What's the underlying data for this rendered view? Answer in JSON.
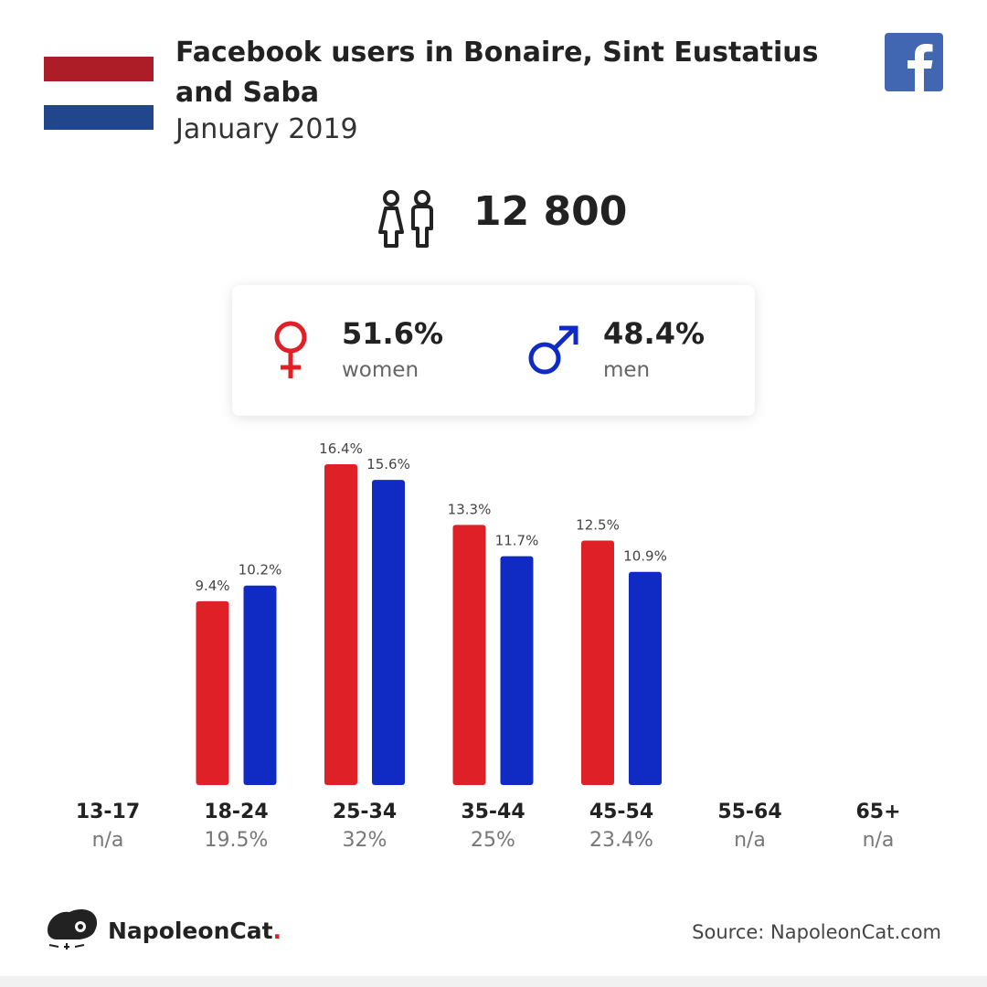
{
  "header": {
    "title": "Facebook users in Bonaire, Sint Eustatius and Saba",
    "subtitle": "January 2019"
  },
  "flag": {
    "colors": [
      "#ad1d28",
      "#ffffff",
      "#21468b"
    ]
  },
  "icons": {
    "flag": "netherlands-flag-icon",
    "social": "facebook-logo-icon",
    "users": "users-icon",
    "female": "female-symbol-icon",
    "male": "male-symbol-icon",
    "brand": "napoleoncat-logo-icon"
  },
  "totals": {
    "users": "12 800"
  },
  "gender": {
    "women": {
      "pct": "51.6%",
      "label": "women"
    },
    "men": {
      "pct": "48.4%",
      "label": "men"
    }
  },
  "colors": {
    "women": "#e02027",
    "men": "#0f2bc4",
    "facebook": "#4267b2"
  },
  "chart_data": {
    "type": "bar",
    "categories": [
      "13-17",
      "18-24",
      "25-34",
      "35-44",
      "45-54",
      "55-64",
      "65+"
    ],
    "category_totals": [
      "n/a",
      "19.5%",
      "32%",
      "25%",
      "23.4%",
      "n/a",
      "n/a"
    ],
    "series": [
      {
        "values": [
          null,
          9.4,
          16.4,
          13.3,
          12.5,
          null,
          null
        ],
        "labels": [
          "",
          "9.4%",
          "16.4%",
          "13.3%",
          "12.5%",
          "",
          ""
        ],
        "color": "#e02027"
      },
      {
        "values": [
          null,
          10.2,
          15.6,
          11.7,
          10.9,
          null,
          null
        ],
        "labels": [
          "",
          "10.2%",
          "15.6%",
          "11.7%",
          "10.9%",
          "",
          ""
        ],
        "color": "#0f2bc4"
      }
    ],
    "ylim": [
      0,
      16.4
    ],
    "grid": false
  },
  "footer": {
    "brand_name": "NapoleonCat",
    "brand_dot": ".",
    "source": "Source: NapoleonCat.com"
  }
}
